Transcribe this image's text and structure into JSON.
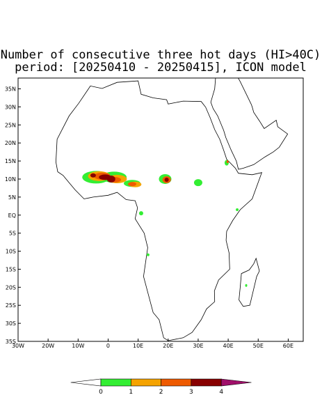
{
  "map": {
    "title": "Number of consecutive three hot days (HI>40C)",
    "subtitle": "period: [20250410 - 20250415], ICON model",
    "xlim": [
      -30,
      65
    ],
    "ylim": [
      -35,
      38
    ],
    "lat_ticks": [
      {
        "value": 35,
        "label": "35N"
      },
      {
        "value": 30,
        "label": "30N"
      },
      {
        "value": 25,
        "label": "25N"
      },
      {
        "value": 20,
        "label": "20N"
      },
      {
        "value": 15,
        "label": "15N"
      },
      {
        "value": 10,
        "label": "10N"
      },
      {
        "value": 5,
        "label": "5N"
      },
      {
        "value": 0,
        "label": "EQ"
      },
      {
        "value": -5,
        "label": "5S"
      },
      {
        "value": -10,
        "label": "10S"
      },
      {
        "value": -15,
        "label": "15S"
      },
      {
        "value": -20,
        "label": "20S"
      },
      {
        "value": -25,
        "label": "25S"
      },
      {
        "value": -30,
        "label": "30S"
      },
      {
        "value": -35,
        "label": "35S"
      }
    ],
    "lon_ticks": [
      {
        "value": -30,
        "label": "30W"
      },
      {
        "value": -20,
        "label": "20W"
      },
      {
        "value": -10,
        "label": "10W"
      },
      0,
      {
        "value": 10,
        "label": "10E"
      },
      {
        "value": 20,
        "label": "20E"
      },
      {
        "value": 30,
        "label": "30E"
      },
      {
        "value": 40,
        "label": "40E"
      },
      {
        "value": 50,
        "label": "50E"
      },
      {
        "value": 60,
        "label": "60E"
      }
    ],
    "colorbar": {
      "levels": [
        0,
        1,
        2,
        3,
        4
      ],
      "colors": [
        "#ffffff",
        "#33ee33",
        "#f5a300",
        "#ee5a00",
        "#880000",
        "#a0106a"
      ]
    }
  }
}
